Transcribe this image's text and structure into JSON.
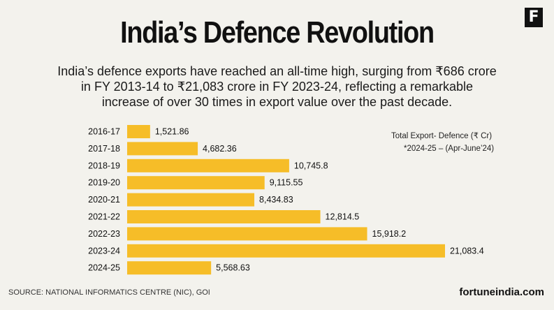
{
  "branding": {
    "logo_letter": "F",
    "site": "fortuneindia.com"
  },
  "header": {
    "title": "India’s Defence Revolution",
    "subtitle": "India’s defence exports have reached an all-time high, surging from ₹686 crore in FY 2013-14 to ₹21,083 crore in FY 2023-24, reflecting a remarkable increase of over 30 times in export value over the past decade."
  },
  "legend": {
    "line1": "Total Export- Defence (₹ Cr)",
    "line2": "*2024-25 – (Apr-June’24)"
  },
  "source": "SOURCE: NATIONAL INFORMATICS CENTRE (NIC), GOI",
  "colors": {
    "bar": "#f6bd28",
    "background": "#f3f2ed"
  },
  "chart_data": {
    "type": "bar",
    "orientation": "horizontal",
    "categories": [
      "2016-17",
      "2017-18",
      "2018-19",
      "2019-20",
      "2020-21",
      "2021-22",
      "2022-23",
      "2023-24",
      "2024-25"
    ],
    "values": [
      1521.86,
      4682.36,
      10745.8,
      9115.55,
      8434.83,
      12814.5,
      15918.2,
      21083.4,
      5568.63
    ],
    "labels": [
      "1,521.86",
      "4,682.36",
      "10,745.8",
      "9,115.55",
      "8,434.83",
      "12,814.5",
      "15,918.2",
      "21,083.4",
      "5,568.63"
    ],
    "title": "",
    "xlabel": "",
    "ylabel": "",
    "grid": false
  }
}
